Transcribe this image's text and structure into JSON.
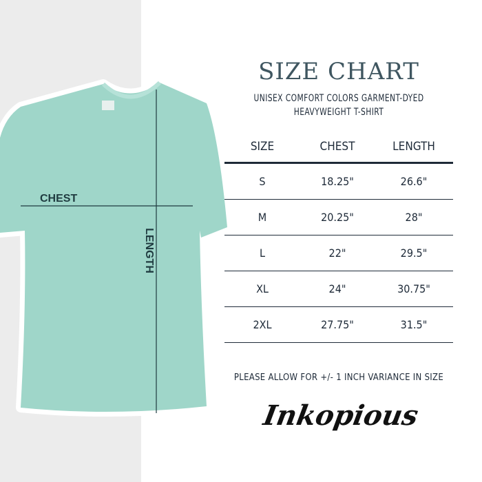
{
  "header": {
    "title": "SIZE CHART",
    "subtitle_line1": "UNISEX COMFORT COLORS GARMENT-DYED",
    "subtitle_line2": "HEAVYWEIGHT T-SHIRT"
  },
  "shirt": {
    "color": "#9fd6c9",
    "chest_label": "CHEST",
    "length_label": "LENGTH"
  },
  "table": {
    "columns": [
      "SIZE",
      "CHEST",
      "LENGTH"
    ],
    "rows": [
      [
        "S",
        "18.25\"",
        "26.6\""
      ],
      [
        "M",
        "20.25\"",
        "28\""
      ],
      [
        "L",
        "22\"",
        "29.5\""
      ],
      [
        "XL",
        "24\"",
        "30.75\""
      ],
      [
        "2XL",
        "27.75\"",
        "31.5\""
      ]
    ]
  },
  "note": "PLEASE ALLOW FOR +/- 1 INCH VARIANCE IN SIZE",
  "brand": "Inkopious"
}
